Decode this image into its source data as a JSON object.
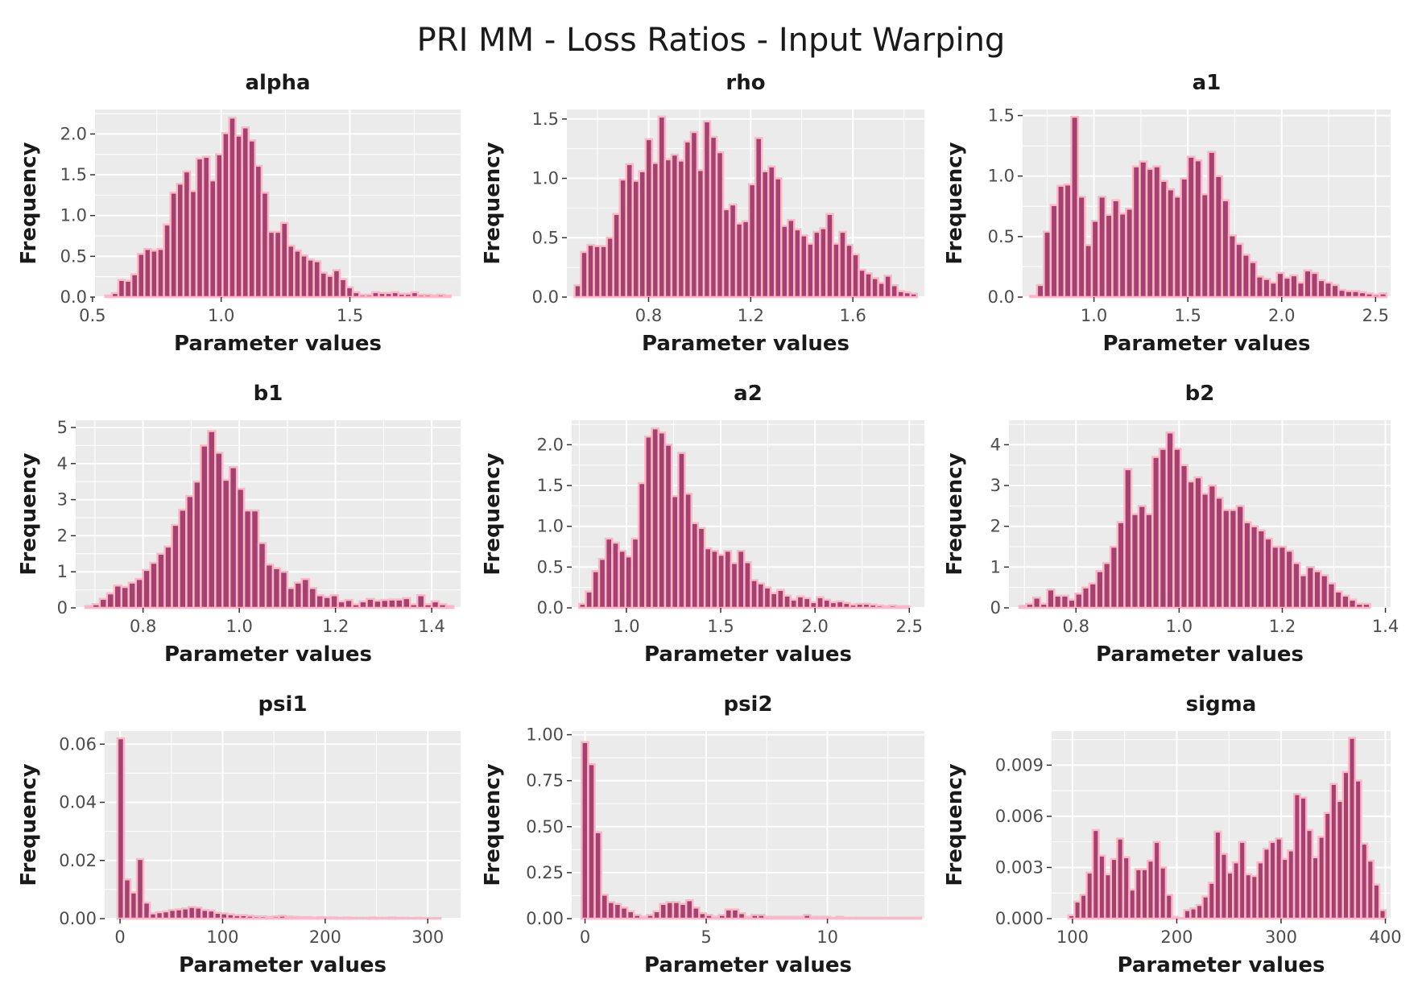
{
  "figure_title": "PRI MM - Loss Ratios - Input Warping",
  "colors": {
    "bar_fill": "#a3426f",
    "bar_outline": "#ffb6c8",
    "panel_bg": "#ebebeb",
    "grid": "#ffffff"
  },
  "chart_data": [
    {
      "type": "bar",
      "title": "alpha",
      "xlabel": "Parameter values",
      "ylabel": "Frequency",
      "xlim": [
        0.51,
        1.93
      ],
      "ylim": [
        0,
        2.3
      ],
      "xticks": [
        {
          "v": 0.5,
          "t": "0.5"
        },
        {
          "v": 1.0,
          "t": "1.0"
        },
        {
          "v": 1.5,
          "t": "1.5"
        }
      ],
      "yticks": [
        {
          "v": 0.0,
          "t": "0.0"
        },
        {
          "v": 0.5,
          "t": "0.5"
        },
        {
          "v": 1.0,
          "t": "1.0"
        },
        {
          "v": 1.5,
          "t": "1.5"
        },
        {
          "v": 2.0,
          "t": "2.0"
        }
      ],
      "bin_start": 0.55,
      "bin_width": 0.0253,
      "values": [
        0.02,
        0.05,
        0.21,
        0.2,
        0.28,
        0.53,
        0.59,
        0.57,
        0.59,
        0.89,
        1.28,
        1.39,
        1.54,
        1.3,
        1.7,
        1.72,
        1.43,
        1.75,
        2.01,
        2.2,
        1.98,
        2.08,
        1.92,
        1.61,
        1.28,
        0.8,
        0.8,
        0.91,
        0.63,
        0.57,
        0.51,
        0.46,
        0.44,
        0.3,
        0.26,
        0.33,
        0.22,
        0.12,
        0.06,
        0.03,
        0.03,
        0.06,
        0.05,
        0.05,
        0.06,
        0.04,
        0.04,
        0.06,
        0.03,
        0.03,
        0.02,
        0.03,
        0.02
      ]
    },
    {
      "type": "bar",
      "title": "rho",
      "xlabel": "Parameter values",
      "ylabel": "Frequency",
      "xlim": [
        0.48,
        1.88
      ],
      "ylim": [
        0,
        1.58
      ],
      "xticks": [
        {
          "v": 0.8,
          "t": "0.8"
        },
        {
          "v": 1.2,
          "t": "1.2"
        },
        {
          "v": 1.6,
          "t": "1.6"
        }
      ],
      "yticks": [
        {
          "v": 0.0,
          "t": "0.0"
        },
        {
          "v": 0.5,
          "t": "0.5"
        },
        {
          "v": 1.0,
          "t": "1.0"
        },
        {
          "v": 1.5,
          "t": "1.5"
        }
      ],
      "bin_start": 0.51,
      "bin_width": 0.0253,
      "values": [
        0.1,
        0.38,
        0.44,
        0.43,
        0.43,
        0.5,
        0.7,
        0.99,
        1.12,
        0.98,
        1.06,
        1.33,
        1.13,
        1.52,
        1.16,
        1.2,
        1.15,
        1.31,
        1.39,
        1.07,
        1.48,
        1.35,
        1.22,
        0.74,
        0.78,
        0.62,
        0.64,
        0.95,
        1.34,
        1.06,
        1.1,
        1.0,
        0.6,
        0.65,
        0.57,
        0.52,
        0.45,
        0.55,
        0.58,
        0.7,
        0.45,
        0.55,
        0.44,
        0.36,
        0.23,
        0.2,
        0.16,
        0.12,
        0.18,
        0.1,
        0.05,
        0.04,
        0.03
      ]
    },
    {
      "type": "bar",
      "title": "a1",
      "xlabel": "Parameter values",
      "ylabel": "Frequency",
      "xlim": [
        0.62,
        2.58
      ],
      "ylim": [
        0,
        1.55
      ],
      "xticks": [
        {
          "v": 1.0,
          "t": "1.0"
        },
        {
          "v": 1.5,
          "t": "1.5"
        },
        {
          "v": 2.0,
          "t": "2.0"
        },
        {
          "v": 2.5,
          "t": "2.5"
        }
      ],
      "yticks": [
        {
          "v": 0.0,
          "t": "0.0"
        },
        {
          "v": 0.5,
          "t": "0.5"
        },
        {
          "v": 1.0,
          "t": "1.0"
        },
        {
          "v": 1.5,
          "t": "1.5"
        }
      ],
      "bin_start": 0.66,
      "bin_width": 0.0365,
      "values": [
        0.01,
        0.1,
        0.54,
        0.76,
        0.92,
        0.93,
        1.49,
        0.83,
        0.43,
        0.63,
        0.83,
        0.68,
        0.8,
        0.69,
        0.73,
        1.08,
        1.12,
        1.06,
        1.08,
        0.96,
        0.89,
        0.83,
        0.98,
        1.16,
        1.13,
        0.85,
        1.2,
        1.0,
        0.8,
        0.51,
        0.44,
        0.35,
        0.29,
        0.17,
        0.15,
        0.12,
        0.2,
        0.16,
        0.18,
        0.12,
        0.22,
        0.2,
        0.14,
        0.12,
        0.1,
        0.06,
        0.05,
        0.05,
        0.04,
        0.03,
        0.02,
        0.03
      ]
    },
    {
      "type": "bar",
      "title": "b1",
      "xlabel": "Parameter values",
      "ylabel": "Frequency",
      "xlim": [
        0.66,
        1.46
      ],
      "ylim": [
        0,
        5.2
      ],
      "xticks": [
        {
          "v": 0.8,
          "t": "0.8"
        },
        {
          "v": 1.0,
          "t": "1.0"
        },
        {
          "v": 1.2,
          "t": "1.2"
        },
        {
          "v": 1.4,
          "t": "1.4"
        }
      ],
      "yticks": [
        {
          "v": 0,
          "t": "0"
        },
        {
          "v": 1,
          "t": "1"
        },
        {
          "v": 2,
          "t": "2"
        },
        {
          "v": 3,
          "t": "3"
        },
        {
          "v": 4,
          "t": "4"
        },
        {
          "v": 5,
          "t": "5"
        }
      ],
      "bin_start": 0.68,
      "bin_width": 0.015,
      "values": [
        0.05,
        0.1,
        0.25,
        0.4,
        0.62,
        0.58,
        0.7,
        0.8,
        1.05,
        1.25,
        1.5,
        1.7,
        2.3,
        2.72,
        3.1,
        3.5,
        4.5,
        4.9,
        4.3,
        3.55,
        3.9,
        3.3,
        2.7,
        2.7,
        1.8,
        1.2,
        1.1,
        1.0,
        0.55,
        0.7,
        0.8,
        0.55,
        0.35,
        0.3,
        0.35,
        0.18,
        0.22,
        0.1,
        0.18,
        0.25,
        0.2,
        0.22,
        0.23,
        0.23,
        0.27,
        0.1,
        0.35,
        0.1,
        0.18,
        0.1,
        0.05
      ]
    },
    {
      "type": "bar",
      "title": "a2",
      "xlabel": "Parameter values",
      "ylabel": "Frequency",
      "xlim": [
        0.71,
        2.58
      ],
      "ylim": [
        0,
        2.3
      ],
      "xticks": [
        {
          "v": 1.0,
          "t": "1.0"
        },
        {
          "v": 1.5,
          "t": "1.5"
        },
        {
          "v": 2.0,
          "t": "2.0"
        },
        {
          "v": 2.5,
          "t": "2.5"
        }
      ],
      "yticks": [
        {
          "v": 0.0,
          "t": "0.0"
        },
        {
          "v": 0.5,
          "t": "0.5"
        },
        {
          "v": 1.0,
          "t": "1.0"
        },
        {
          "v": 1.5,
          "t": "1.5"
        },
        {
          "v": 2.0,
          "t": "2.0"
        }
      ],
      "bin_start": 0.75,
      "bin_width": 0.035,
      "values": [
        0.05,
        0.2,
        0.45,
        0.6,
        0.85,
        0.8,
        0.7,
        0.63,
        0.85,
        1.53,
        2.1,
        2.2,
        2.15,
        2.0,
        1.37,
        1.9,
        1.4,
        1.04,
        0.98,
        0.73,
        0.7,
        0.65,
        0.7,
        0.55,
        0.7,
        0.56,
        0.34,
        0.3,
        0.25,
        0.18,
        0.22,
        0.15,
        0.1,
        0.14,
        0.12,
        0.07,
        0.13,
        0.1,
        0.07,
        0.08,
        0.06,
        0.04,
        0.05,
        0.05,
        0.04,
        0.03,
        0.02,
        0.03,
        0.02,
        0.02
      ]
    },
    {
      "type": "bar",
      "title": "b2",
      "xlabel": "Parameter values",
      "ylabel": "Frequency",
      "xlim": [
        0.67,
        1.41
      ],
      "ylim": [
        0,
        4.6
      ],
      "xticks": [
        {
          "v": 0.8,
          "t": "0.8"
        },
        {
          "v": 1.0,
          "t": "1.0"
        },
        {
          "v": 1.2,
          "t": "1.2"
        },
        {
          "v": 1.4,
          "t": "1.4"
        }
      ],
      "yticks": [
        {
          "v": 0,
          "t": "0"
        },
        {
          "v": 1,
          "t": "1"
        },
        {
          "v": 2,
          "t": "2"
        },
        {
          "v": 3,
          "t": "3"
        },
        {
          "v": 4,
          "t": "4"
        }
      ],
      "bin_start": 0.69,
      "bin_width": 0.0136,
      "values": [
        0.05,
        0.1,
        0.25,
        0.1,
        0.45,
        0.3,
        0.3,
        0.2,
        0.35,
        0.5,
        0.6,
        0.9,
        1.1,
        1.5,
        2.1,
        3.4,
        2.3,
        2.5,
        2.3,
        3.7,
        3.9,
        4.3,
        3.9,
        3.5,
        3.1,
        3.2,
        2.8,
        3.0,
        2.7,
        2.4,
        2.4,
        2.5,
        2.1,
        2.0,
        1.9,
        1.7,
        1.5,
        1.5,
        1.4,
        1.1,
        0.8,
        1.0,
        0.9,
        0.8,
        0.6,
        0.4,
        0.3,
        0.2,
        0.1,
        0.1
      ]
    },
    {
      "type": "bar",
      "title": "psi1",
      "xlabel": "Parameter values",
      "ylabel": "Frequency",
      "xlim": [
        -15,
        332
      ],
      "ylim": [
        0,
        0.0645
      ],
      "xticks": [
        {
          "v": 0,
          "t": "0"
        },
        {
          "v": 100,
          "t": "100"
        },
        {
          "v": 200,
          "t": "200"
        },
        {
          "v": 300,
          "t": "300"
        }
      ],
      "yticks": [
        {
          "v": 0.0,
          "t": "0.00"
        },
        {
          "v": 0.02,
          "t": "0.02"
        },
        {
          "v": 0.04,
          "t": "0.04"
        },
        {
          "v": 0.06,
          "t": "0.06"
        }
      ],
      "bin_start": -2.5,
      "bin_width": 6.3,
      "values": [
        0.062,
        0.0135,
        0.009,
        0.0205,
        0.0055,
        0.0018,
        0.0022,
        0.0025,
        0.003,
        0.0032,
        0.0035,
        0.004,
        0.0038,
        0.003,
        0.0028,
        0.002,
        0.0018,
        0.0015,
        0.0012,
        0.0012,
        0.001,
        0.0008,
        0.0008,
        0.0006,
        0.0008,
        0.001,
        0.0007,
        0.0006,
        0.0005,
        0.0005,
        0.0004,
        0.0005,
        0.0004,
        0.0004,
        0.0003,
        0.0004,
        0.0003,
        0.0003,
        0.0003,
        0.0004,
        0.0003,
        0.0003,
        0.0004,
        0.0003,
        0.0003,
        0.0002,
        0.0003,
        0.0002,
        0.0002,
        0.0002
      ]
    },
    {
      "type": "bar",
      "title": "psi2",
      "xlabel": "Parameter values",
      "ylabel": "Frequency",
      "xlim": [
        -0.55,
        14.0
      ],
      "ylim": [
        0,
        1.02
      ],
      "xticks": [
        {
          "v": 0,
          "t": "0"
        },
        {
          "v": 5,
          "t": "5"
        },
        {
          "v": 10,
          "t": "10"
        }
      ],
      "yticks": [
        {
          "v": 0.0,
          "t": "0.00"
        },
        {
          "v": 0.25,
          "t": "0.25"
        },
        {
          "v": 0.5,
          "t": "0.50"
        },
        {
          "v": 0.75,
          "t": "0.75"
        },
        {
          "v": 1.0,
          "t": "1.00"
        }
      ],
      "bin_start": -0.14,
      "bin_width": 0.2695,
      "values": [
        0.96,
        0.84,
        0.47,
        0.13,
        0.09,
        0.08,
        0.06,
        0.04,
        0.02,
        0.01,
        0.02,
        0.04,
        0.08,
        0.09,
        0.09,
        0.08,
        0.1,
        0.06,
        0.03,
        0.02,
        0.01,
        0.02,
        0.05,
        0.05,
        0.03,
        0.01,
        0.02,
        0.02,
        0.01,
        0.01,
        0.01,
        0.01,
        0.01,
        0.01,
        0.02,
        0.01,
        0.01,
        0.01,
        0.005,
        0.01,
        0.005,
        0.005,
        0.005,
        0.005,
        0.005,
        0.005,
        0.005,
        0.005,
        0.005,
        0.005,
        0.005,
        0.005
      ]
    },
    {
      "type": "bar",
      "title": "sigma",
      "xlabel": "Parameter values",
      "ylabel": "Frequency",
      "xlim": [
        80,
        405
      ],
      "ylim": [
        0,
        0.011
      ],
      "xticks": [
        {
          "v": 100,
          "t": "100"
        },
        {
          "v": 200,
          "t": "200"
        },
        {
          "v": 300,
          "t": "300"
        },
        {
          "v": 400,
          "t": "400"
        }
      ],
      "yticks": [
        {
          "v": 0.0,
          "t": "0.000"
        },
        {
          "v": 0.003,
          "t": "0.003"
        },
        {
          "v": 0.006,
          "t": "0.006"
        },
        {
          "v": 0.009,
          "t": "0.009"
        }
      ],
      "bin_start": 96,
      "bin_width": 5.85,
      "values": [
        0.0002,
        0.001,
        0.0014,
        0.0027,
        0.0052,
        0.0037,
        0.0026,
        0.0035,
        0.0047,
        0.0036,
        0.0017,
        0.0029,
        0.0029,
        0.0034,
        0.0045,
        0.003,
        0.0014,
        0.0001,
        0.0,
        0.0005,
        0.0006,
        0.0008,
        0.0013,
        0.0021,
        0.0051,
        0.0038,
        0.0027,
        0.0033,
        0.0045,
        0.0026,
        0.0025,
        0.0033,
        0.0041,
        0.0045,
        0.0047,
        0.0035,
        0.004,
        0.0073,
        0.0071,
        0.0052,
        0.0036,
        0.0048,
        0.0062,
        0.0079,
        0.0069,
        0.0086,
        0.0106,
        0.0081,
        0.0044,
        0.0034,
        0.002,
        0.0005
      ]
    }
  ]
}
